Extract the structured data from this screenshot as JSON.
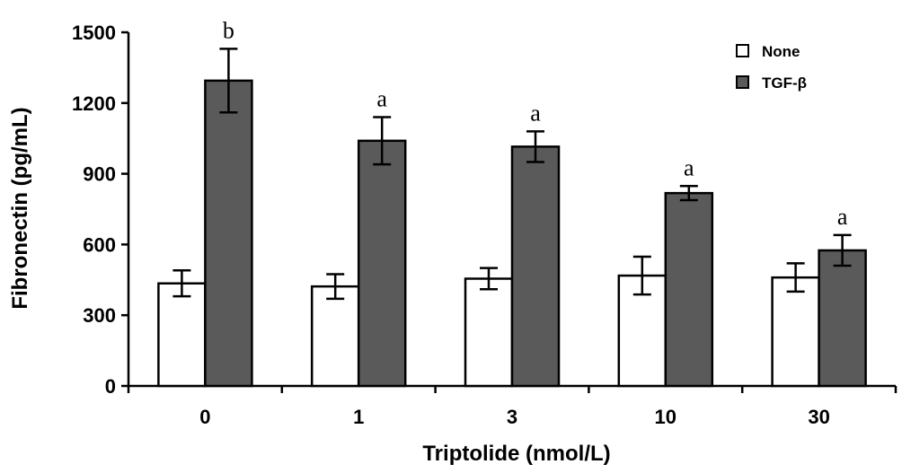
{
  "chart_data": {
    "type": "bar",
    "xlabel": "Triptolide (nmol/L)",
    "ylabel": "Fibronectin  (pg/mL)",
    "categories": [
      "0",
      "1",
      "3",
      "10",
      "30"
    ],
    "series": [
      {
        "name": "None",
        "color": "#ffffff",
        "values": [
          435,
          422,
          455,
          468,
          460
        ],
        "errors": [
          55,
          52,
          45,
          80,
          60
        ]
      },
      {
        "name": "TGF-β",
        "color": "#5a5a5a",
        "values": [
          1295,
          1040,
          1015,
          818,
          575
        ],
        "errors": [
          135,
          100,
          65,
          30,
          65
        ]
      }
    ],
    "significance": [
      "b",
      "a",
      "a",
      "a",
      "a"
    ],
    "ylim": [
      0,
      1500
    ],
    "yticks": [
      0,
      300,
      600,
      900,
      1200,
      1500
    ],
    "grid": false,
    "legend_position": "top-right",
    "error_bars": true
  }
}
